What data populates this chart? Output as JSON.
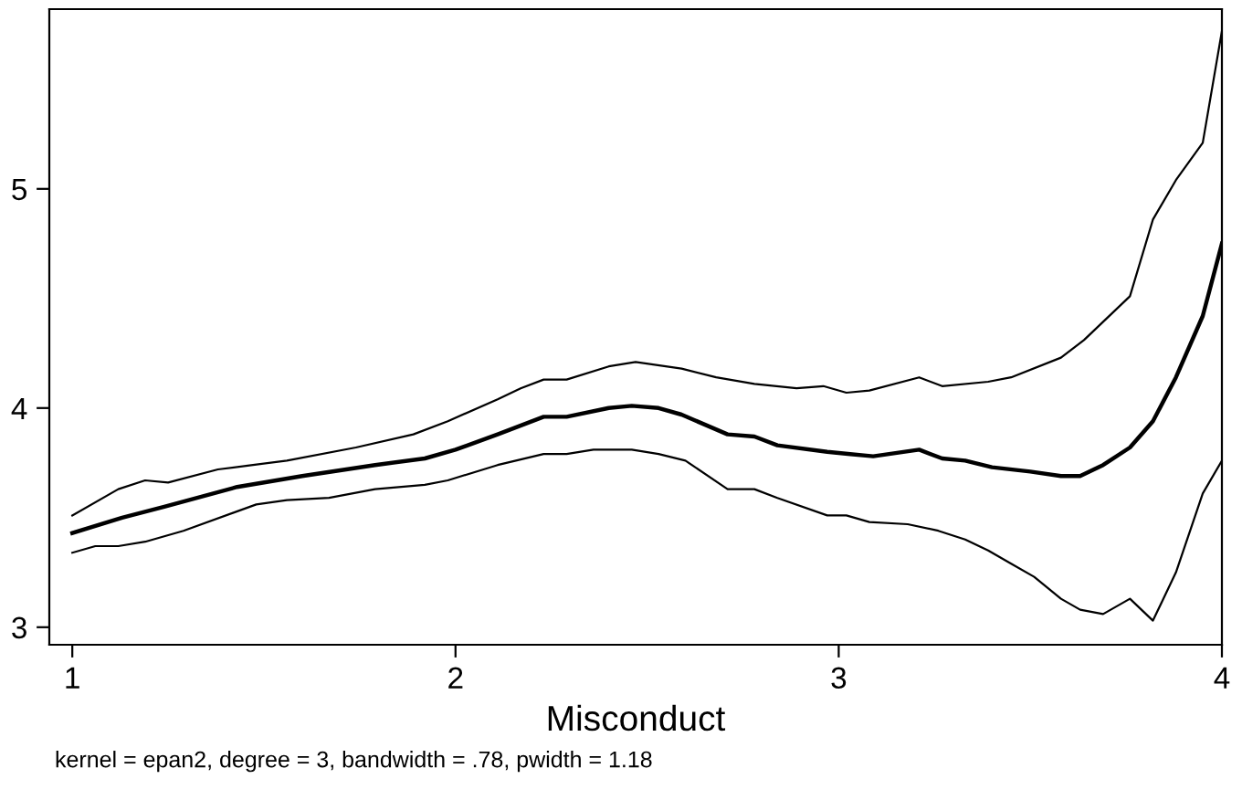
{
  "chart_data": {
    "type": "line",
    "xlabel": "Misconduct",
    "annotations": [
      "kernel = epan2, degree = 3, bandwidth = .78, pwidth = 1.18"
    ],
    "xlim": [
      0.94,
      4.0
    ],
    "ylim": [
      2.92,
      5.82
    ],
    "xticks": [
      1,
      2,
      3,
      4
    ],
    "yticks": [
      3,
      4,
      5
    ],
    "grid": false,
    "legend": false,
    "marker": "none",
    "line_style": "solid",
    "series": [
      {
        "color": "#000000",
        "x": [
          1.0,
          1.13,
          1.24,
          1.43,
          1.6,
          1.79,
          1.92,
          2.0,
          2.11,
          2.23,
          2.29,
          2.4,
          2.46,
          2.53,
          2.59,
          2.71,
          2.78,
          2.84,
          2.97,
          3.03,
          3.09,
          3.21,
          3.27,
          3.33,
          3.4,
          3.5,
          3.58,
          3.63,
          3.69,
          3.76,
          3.82,
          3.88,
          3.95,
          4.0
        ],
        "values": [
          3.43,
          3.5,
          3.55,
          3.64,
          3.69,
          3.74,
          3.77,
          3.81,
          3.88,
          3.96,
          3.96,
          4.0,
          4.01,
          4.0,
          3.97,
          3.88,
          3.87,
          3.83,
          3.8,
          3.79,
          3.78,
          3.81,
          3.77,
          3.76,
          3.73,
          3.71,
          3.69,
          3.69,
          3.74,
          3.82,
          3.94,
          4.14,
          4.42,
          4.75
        ]
      },
      {
        "color": "#000000",
        "x": [
          1.0,
          1.12,
          1.19,
          1.25,
          1.38,
          1.56,
          1.74,
          1.89,
          1.98,
          2.11,
          2.17,
          2.23,
          2.29,
          2.4,
          2.47,
          2.59,
          2.68,
          2.78,
          2.89,
          2.96,
          3.02,
          3.08,
          3.21,
          3.27,
          3.39,
          3.45,
          3.58,
          3.64,
          3.76,
          3.82,
          3.88,
          3.95,
          4.0
        ],
        "values": [
          3.51,
          3.63,
          3.67,
          3.66,
          3.72,
          3.76,
          3.82,
          3.88,
          3.94,
          4.04,
          4.09,
          4.13,
          4.13,
          4.19,
          4.21,
          4.18,
          4.14,
          4.11,
          4.09,
          4.1,
          4.07,
          4.08,
          4.14,
          4.1,
          4.12,
          4.14,
          4.23,
          4.31,
          4.51,
          4.86,
          5.04,
          5.21,
          5.72
        ]
      },
      {
        "color": "#000000",
        "x": [
          1.0,
          1.06,
          1.12,
          1.19,
          1.29,
          1.48,
          1.56,
          1.67,
          1.79,
          1.92,
          1.98,
          2.11,
          2.23,
          2.29,
          2.36,
          2.46,
          2.53,
          2.6,
          2.71,
          2.78,
          2.84,
          2.97,
          3.02,
          3.08,
          3.18,
          3.26,
          3.33,
          3.39,
          3.45,
          3.51,
          3.58,
          3.63,
          3.69,
          3.76,
          3.82,
          3.88,
          3.95,
          4.0
        ],
        "values": [
          3.34,
          3.37,
          3.37,
          3.39,
          3.44,
          3.56,
          3.58,
          3.59,
          3.63,
          3.65,
          3.67,
          3.74,
          3.79,
          3.79,
          3.81,
          3.81,
          3.79,
          3.76,
          3.63,
          3.63,
          3.59,
          3.51,
          3.51,
          3.48,
          3.47,
          3.44,
          3.4,
          3.35,
          3.29,
          3.23,
          3.13,
          3.08,
          3.06,
          3.13,
          3.03,
          3.25,
          3.61,
          3.76
        ]
      }
    ]
  }
}
